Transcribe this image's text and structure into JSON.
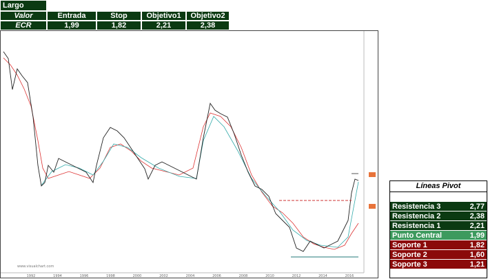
{
  "header": {
    "title": "Largo",
    "table": {
      "columns": [
        "Valor",
        "Entrada",
        "Stop",
        "Objetivo1",
        "Objetivo2"
      ],
      "rows": [
        [
          "ECR",
          "1,99",
          "1,82",
          "2,21",
          "2,38"
        ]
      ]
    }
  },
  "chart": {
    "watermark": "www.visualchart.com",
    "years": [
      "1992",
      "1994",
      "1996",
      "1998",
      "2000",
      "2002",
      "2004",
      "2006",
      "2008",
      "2010",
      "2012",
      "2014",
      "2016"
    ]
  },
  "pivot": {
    "title": "Líneas Pivot",
    "rows": [
      [
        "Resistencia 3",
        "2,77"
      ],
      [
        "Resistencia 2",
        "2,38"
      ],
      [
        "Resistencia 1",
        "2,21"
      ],
      [
        "Punto Central",
        "1,99"
      ],
      [
        "Soporte 1",
        "1,82"
      ],
      [
        "Soporte 2",
        "1,60"
      ],
      [
        "Soporte 3",
        "1,21"
      ]
    ]
  }
}
